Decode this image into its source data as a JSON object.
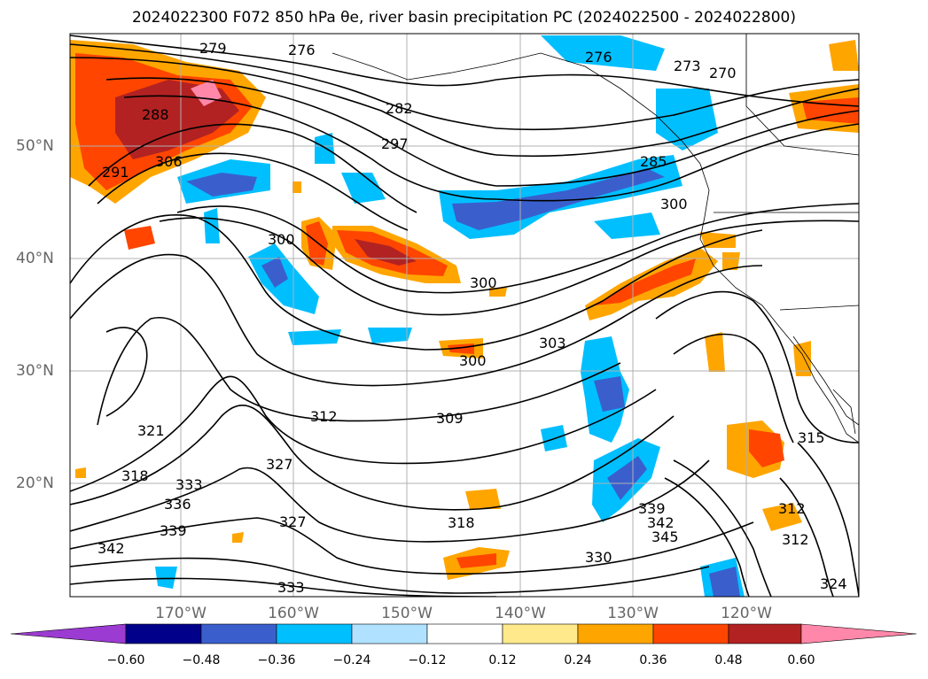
{
  "title": "2024022300 F072 850 hPa θe, river basin precipitation PC (2024022500 - 2024022800)",
  "map": {
    "region": "North-East Pacific / Western North America",
    "projection_extent": {
      "lon": [
        -180,
        -110
      ],
      "lat": [
        10,
        60
      ]
    },
    "lon_ticks": [
      "170°W",
      "160°W",
      "150°W",
      "140°W",
      "130°W",
      "120°W"
    ],
    "lat_ticks": [
      "50°N",
      "40°N",
      "30°N",
      "20°N"
    ],
    "contour_labels": [
      "279",
      "276",
      "276",
      "273",
      "270",
      "282",
      "288",
      "291",
      "306",
      "297",
      "285",
      "300",
      "300",
      "300",
      "300",
      "303",
      "321",
      "312",
      "309",
      "318",
      "318",
      "327",
      "333",
      "336",
      "339",
      "327",
      "342",
      "333",
      "330",
      "339",
      "342",
      "345",
      "315",
      "312",
      "312",
      "324"
    ],
    "shading_field": "river basin precipitation PC",
    "contour_field": "850 hPa θe"
  },
  "colorbar": {
    "tick_labels": [
      "−0.60",
      "−0.48",
      "−0.36",
      "−0.24",
      "−0.12",
      "0.12",
      "0.24",
      "0.36",
      "0.48",
      "0.60"
    ],
    "colors": {
      "under": "#9b3bd1",
      "b1": "#00008b",
      "b2": "#3a5fcd",
      "b3": "#00bfff",
      "b4": "#b0e2ff",
      "b5": "#ffffff",
      "b6": "#ffe98a",
      "b7": "#ffa500",
      "b8": "#ff4500",
      "b9": "#b22222",
      "over": "#ff88aa"
    }
  }
}
